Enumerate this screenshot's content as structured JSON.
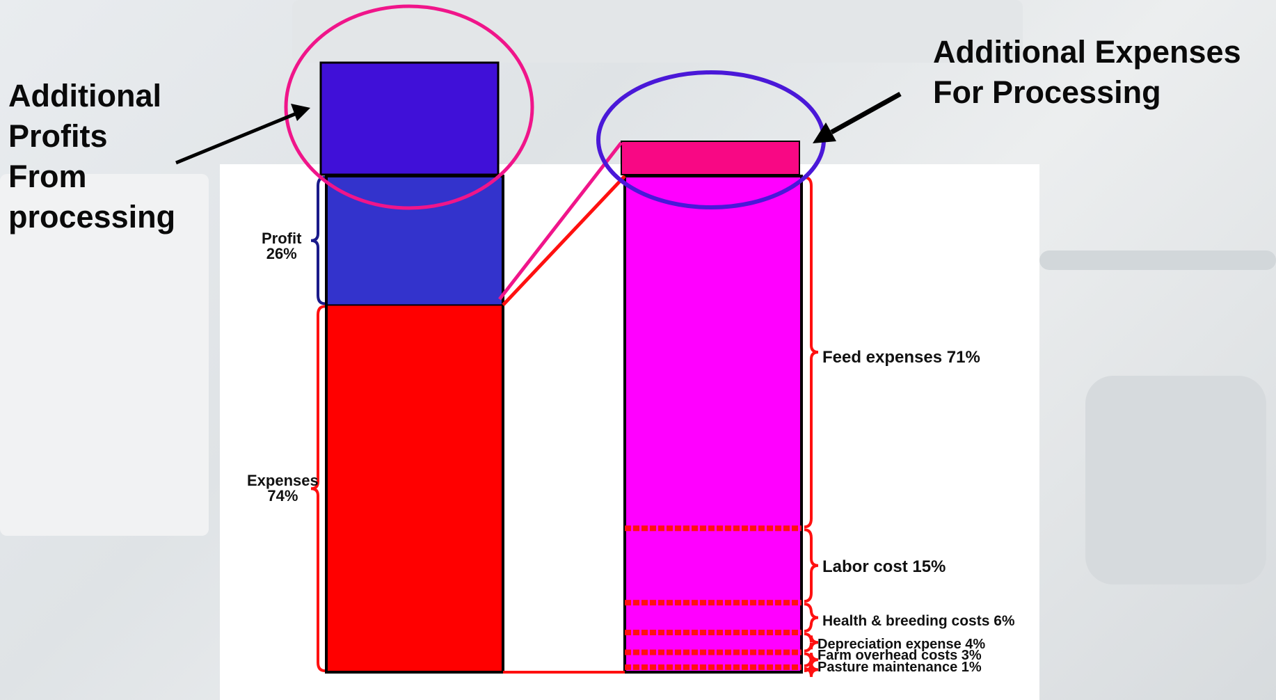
{
  "callouts": {
    "profits": [
      "Additional",
      "Profits",
      "From",
      "processing"
    ],
    "expenses": [
      "Additional Expenses",
      "For Processing"
    ]
  },
  "left_bar": {
    "profit_label": "Profit",
    "profit_pct": "26%",
    "expenses_label": "Expenses",
    "expenses_pct": "74%",
    "profit_share": 26,
    "expenses_share": 74
  },
  "right_bar": {
    "segments": [
      {
        "label": "Feed expenses 71%",
        "share": 71
      },
      {
        "label": "Labor cost 15%",
        "share": 15
      },
      {
        "label": "Health & breeding costs 6%",
        "share": 6
      },
      {
        "label": "Depreciation expense 4%",
        "share": 4
      },
      {
        "label": "Farm overhead costs 3%",
        "share": 3
      },
      {
        "label": "Pasture maintenance 1%",
        "share": 1
      }
    ]
  },
  "colors": {
    "profit": "#3333cc",
    "additional_profit": "#4010d8",
    "expenses": "#ff0000",
    "cost_breakdown": "#ff00ff",
    "additional_expense": "#f80884",
    "profit_circle": "#f0158a",
    "expense_circle": "#4a18d8",
    "brace_red": "#ff1010",
    "brace_blue": "#1a1a8a"
  }
}
